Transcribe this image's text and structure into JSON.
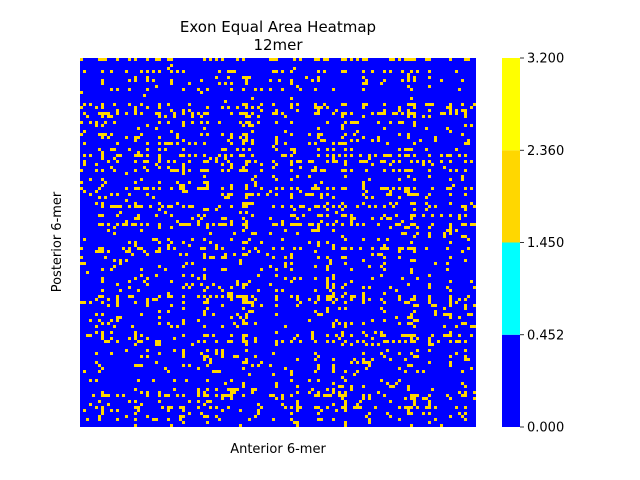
{
  "chart_data": {
    "type": "heatmap",
    "title": "Exon Equal Area Heatmap",
    "subtitle": "12mer",
    "xlabel": "Anterior 6-mer",
    "ylabel": "Posterior 6-mer",
    "x_ticks": [],
    "y_ticks": [],
    "colorbar": {
      "boundaries": [
        0.0,
        0.452,
        1.45,
        2.36,
        3.2
      ],
      "tick_labels": [
        "0.000",
        "0.452",
        "1.450",
        "2.360",
        "3.200"
      ],
      "colors": [
        "#0000ff",
        "#00ffff",
        "#ffd700",
        "#ffff00"
      ]
    },
    "dominant_color": "#0000ff",
    "secondary_color": "#ffd700",
    "grid": false
  }
}
